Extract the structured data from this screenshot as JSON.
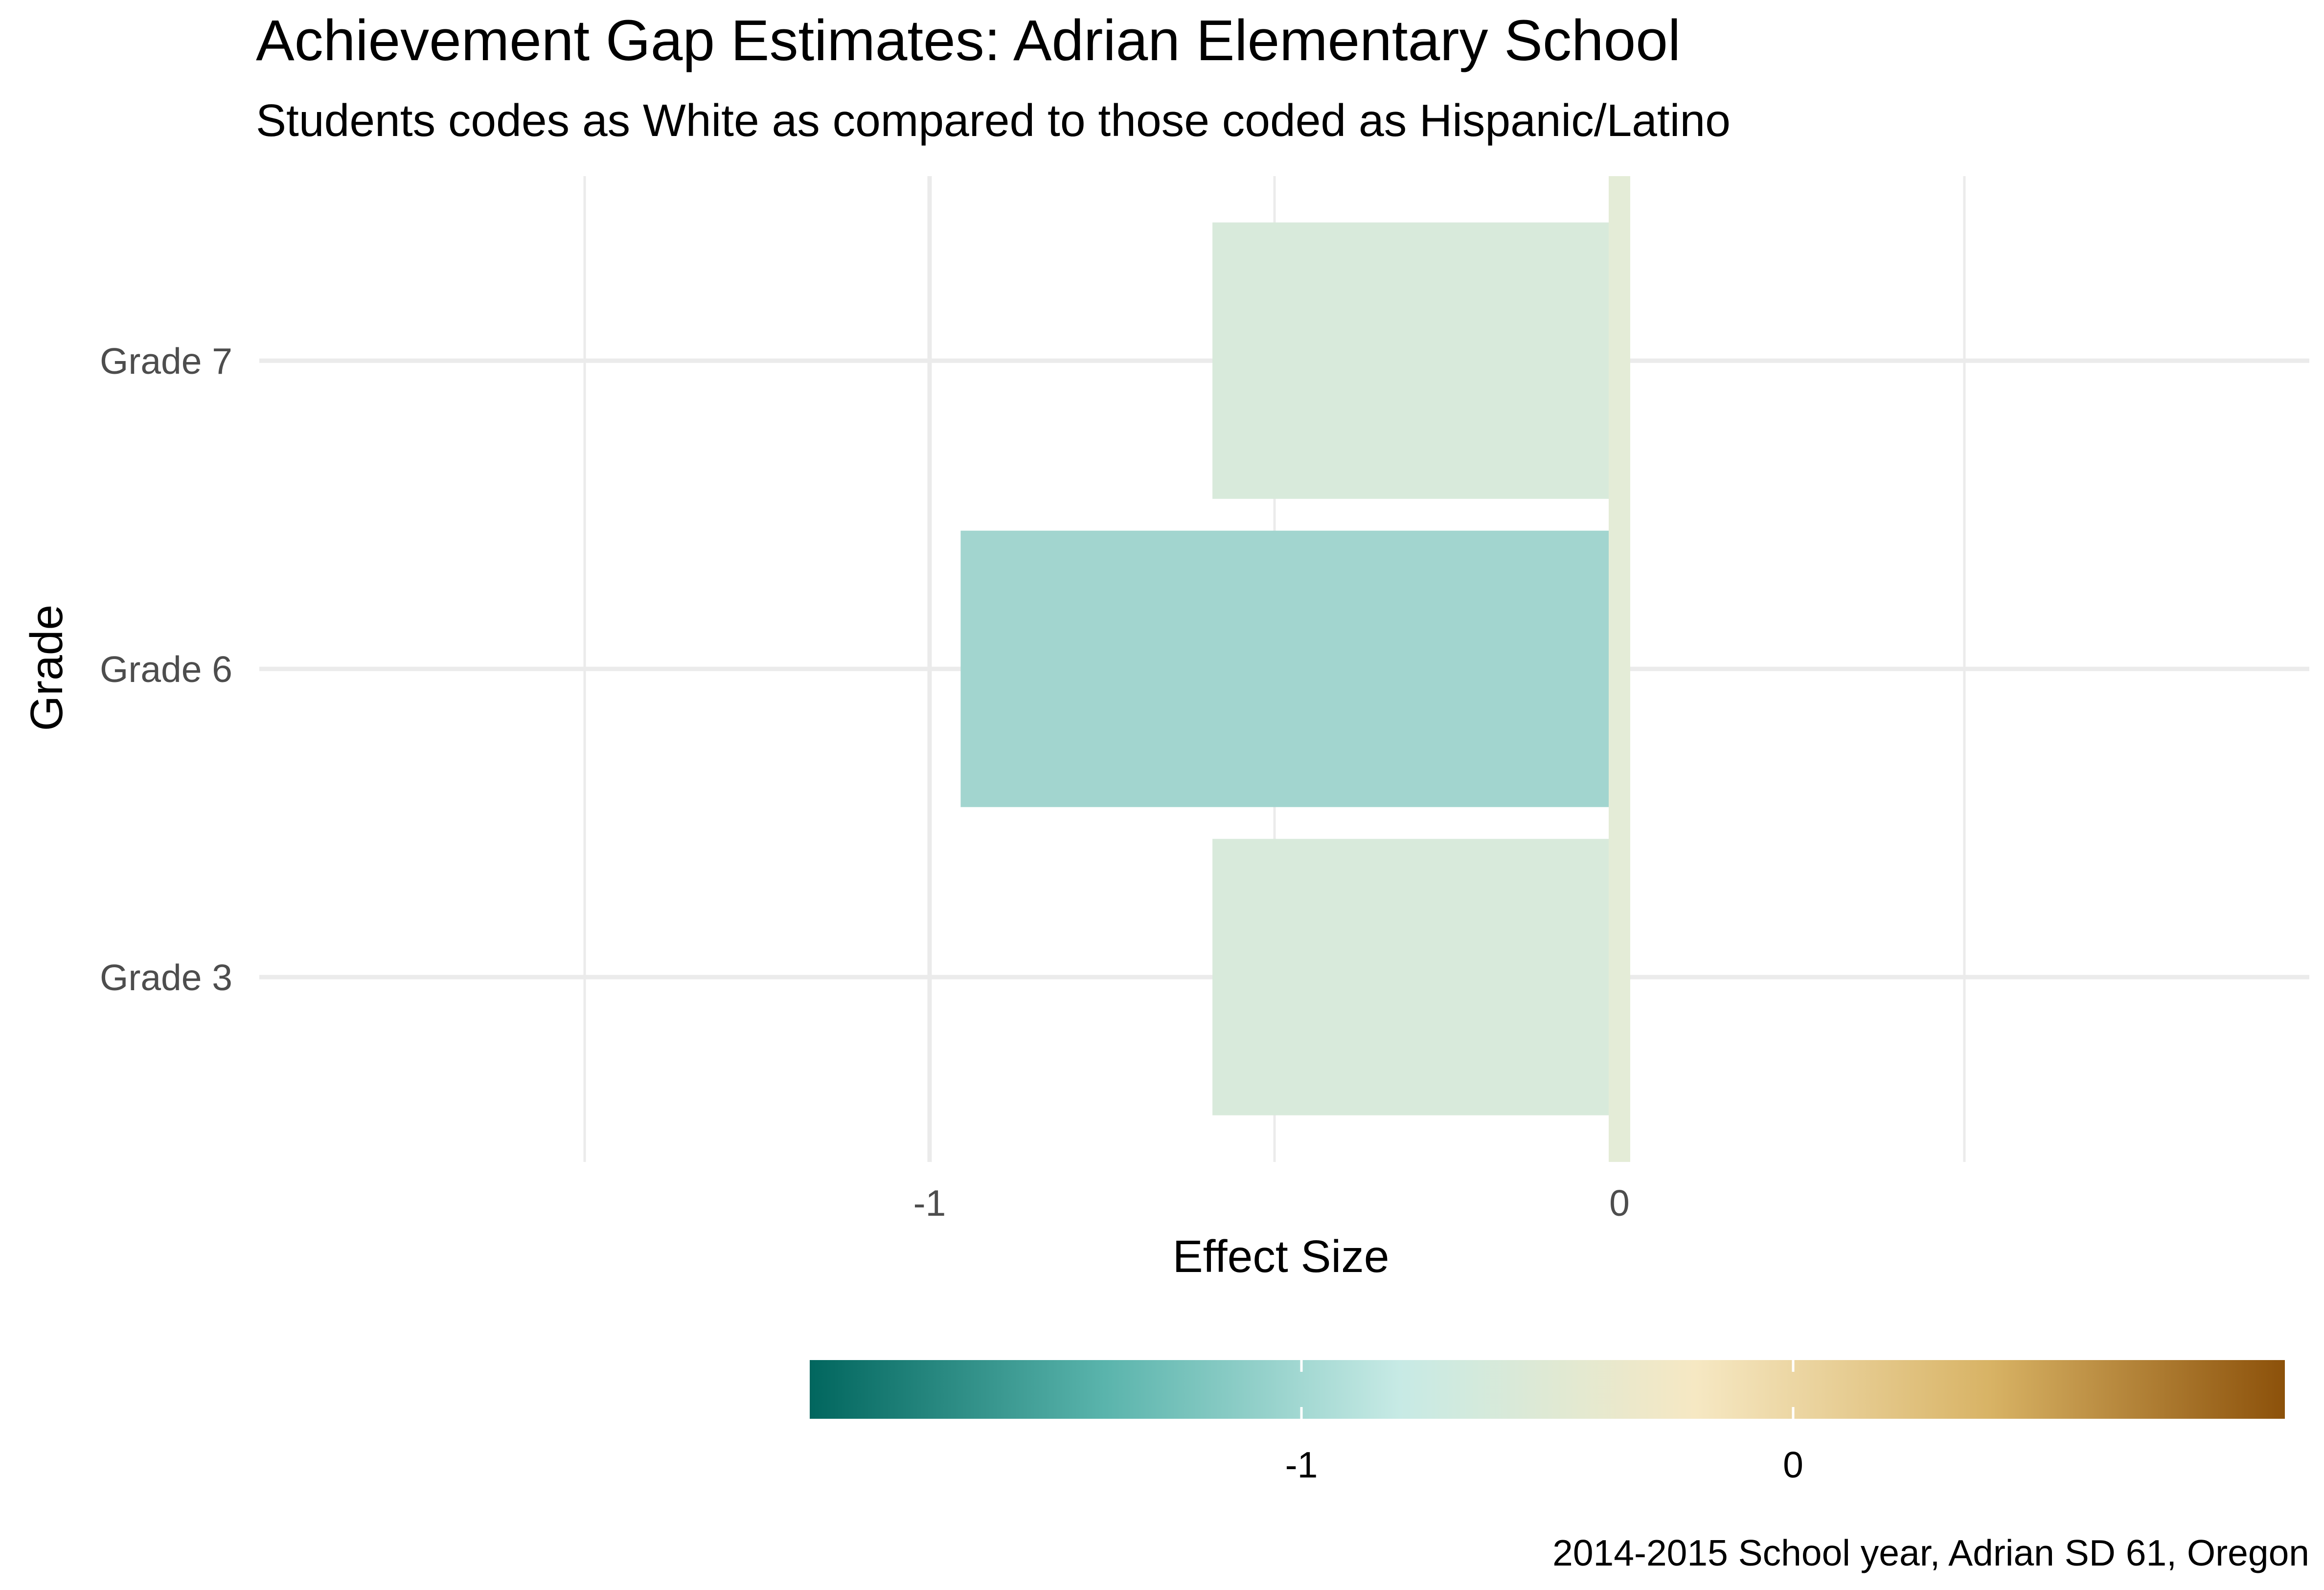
{
  "chart_data": {
    "type": "bar",
    "orientation": "horizontal",
    "title": "Achievement Gap Estimates: Adrian Elementary School",
    "subtitle": "Students codes as White as compared to those coded as Hispanic/Latino",
    "xlabel": "Effect Size",
    "ylabel": "Grade",
    "caption": "2014-2015 School year, Adrian SD 61, Oregon",
    "categories": [
      "Grade 3",
      "Grade 6",
      "Grade 7"
    ],
    "values": [
      -0.59,
      -0.955,
      -0.59
    ],
    "reference_value": 0.0,
    "xlim": [
      -1.5,
      1.0
    ],
    "x_ticks": [
      -1,
      0
    ],
    "x_tick_labels": [
      "-1",
      "0"
    ],
    "grid": true,
    "colorbar": {
      "position": "bottom",
      "range": [
        -2.0,
        1.0
      ],
      "ticks": [
        -1,
        0
      ],
      "tick_labels": [
        "-1",
        "0"
      ],
      "palette": [
        "#01665e",
        "#5ab4ac",
        "#c7eae5",
        "#f6e8c3",
        "#d8b365",
        "#8c510a"
      ]
    },
    "colors": {
      "bar_grade3": "#d8eadb",
      "bar_grade6": "#a2d5cf",
      "bar_grade7": "#d8eadb",
      "reference_band": "#e4ecd7",
      "grid": "#ebebeb"
    }
  }
}
